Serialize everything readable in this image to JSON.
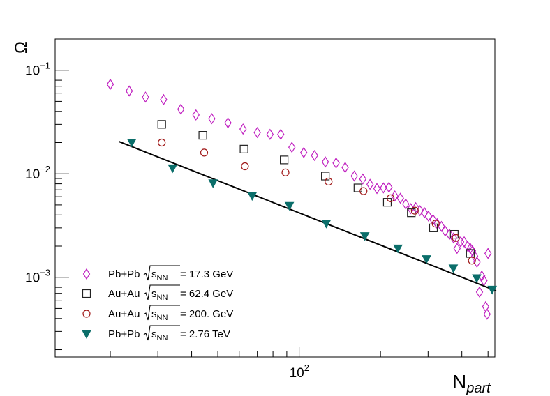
{
  "chart_data": {
    "type": "scatter",
    "title": "",
    "xlabel": {
      "main": "N",
      "sub": "part"
    },
    "ylabel": "Ω",
    "xscale": "log",
    "yscale": "log",
    "xlim": [
      12.5,
      530
    ],
    "ylim": [
      0.00017,
      0.2
    ],
    "x_ticks": [
      {
        "base": "10",
        "exp": "2",
        "value": 100
      }
    ],
    "y_ticks": [
      {
        "base": "10",
        "exp": "−3",
        "value": 0.001
      },
      {
        "base": "10",
        "exp": "−2",
        "value": 0.01
      },
      {
        "base": "10",
        "exp": "−1",
        "value": 0.1
      }
    ],
    "legend_position": "bottom-left",
    "series": [
      {
        "name": "Pb+Pb",
        "energy": "= 17.3 GeV",
        "marker": "diamond-open",
        "color": "#c020c0",
        "points": [
          [
            20.0,
            0.073
          ],
          [
            23.5,
            0.063
          ],
          [
            27.0,
            0.055
          ],
          [
            31.5,
            0.052
          ],
          [
            36.5,
            0.042
          ],
          [
            41.5,
            0.037
          ],
          [
            47.5,
            0.034
          ],
          [
            54.5,
            0.031
          ],
          [
            62.0,
            0.027
          ],
          [
            70.0,
            0.025
          ],
          [
            78.0,
            0.024
          ],
          [
            85.5,
            0.024
          ],
          [
            94.0,
            0.018
          ],
          [
            104.0,
            0.016
          ],
          [
            114.0,
            0.015
          ],
          [
            125.0,
            0.013
          ],
          [
            137.0,
            0.0127
          ],
          [
            148.0,
            0.0115
          ],
          [
            160.0,
            0.0095
          ],
          [
            172.0,
            0.0089
          ],
          [
            183.0,
            0.0079
          ],
          [
            194.0,
            0.0072
          ],
          [
            205.0,
            0.0073
          ],
          [
            215.0,
            0.0074
          ],
          [
            226.0,
            0.0061
          ],
          [
            237.0,
            0.0058
          ],
          [
            248.0,
            0.0051
          ],
          [
            259.0,
            0.0046
          ],
          [
            270.0,
            0.0047
          ],
          [
            280.0,
            0.0044
          ],
          [
            291.0,
            0.0042
          ],
          [
            301.0,
            0.0039
          ],
          [
            313.0,
            0.0036
          ],
          [
            324.0,
            0.0033
          ],
          [
            336.0,
            0.0031
          ],
          [
            347.0,
            0.0028
          ],
          [
            360.0,
            0.0026
          ],
          [
            373.0,
            0.0024
          ],
          [
            384.0,
            0.0019
          ],
          [
            396.0,
            0.0022
          ],
          [
            408.0,
            0.0022
          ],
          [
            420.0,
            0.002
          ],
          [
            430.0,
            0.0019
          ],
          [
            438.0,
            0.0018
          ],
          [
            446.0,
            0.0016
          ],
          [
            455.0,
            0.0014
          ],
          [
            465.0,
            0.00072
          ],
          [
            474.0,
            0.00103
          ],
          [
            483.0,
            0.00093
          ],
          [
            490.0,
            0.00052
          ],
          [
            496.0,
            0.00044
          ],
          [
            500.0,
            0.0017
          ]
        ]
      },
      {
        "name": "Au+Au",
        "energy": "= 62.4 GeV",
        "marker": "square-open",
        "color": "#222222",
        "points": [
          [
            31.0,
            0.03
          ],
          [
            44.0,
            0.0235
          ],
          [
            62.5,
            0.0173
          ],
          [
            88.0,
            0.0136
          ],
          [
            125.0,
            0.0095
          ],
          [
            165.0,
            0.0073
          ],
          [
            212.0,
            0.0053
          ],
          [
            260.0,
            0.0042
          ],
          [
            314.0,
            0.003
          ],
          [
            375.0,
            0.0026
          ],
          [
            430.0,
            0.0017
          ]
        ]
      },
      {
        "name": "Au+Au",
        "energy": "= 200. GeV",
        "marker": "circle-open",
        "color": "#a01818",
        "points": [
          [
            31.0,
            0.02
          ],
          [
            44.5,
            0.016
          ],
          [
            63.0,
            0.0118
          ],
          [
            89.0,
            0.0103
          ],
          [
            128.5,
            0.0084
          ],
          [
            173.0,
            0.0068
          ],
          [
            218.0,
            0.0058
          ],
          [
            268.0,
            0.0044
          ],
          [
            320.0,
            0.0033
          ],
          [
            380.0,
            0.0024
          ],
          [
            436.0,
            0.00145
          ]
        ]
      },
      {
        "name": "Pb+Pb",
        "energy": "= 2.76 TeV",
        "marker": "triangle-down-filled",
        "color": "#0b6e6a",
        "points": [
          [
            24.0,
            0.02
          ],
          [
            34.0,
            0.0113
          ],
          [
            48.0,
            0.0081
          ],
          [
            67.0,
            0.0061
          ],
          [
            92.0,
            0.0049
          ],
          [
            126.0,
            0.0033
          ],
          [
            175.0,
            0.0025
          ],
          [
            232.0,
            0.0019
          ],
          [
            296.0,
            0.0015
          ],
          [
            372.0,
            0.00122
          ],
          [
            454.0,
            0.00098
          ],
          [
            518.0,
            0.00076
          ]
        ]
      }
    ],
    "fit_line": {
      "color": "#000000",
      "from": [
        21.5,
        0.0205
      ],
      "to": [
        536.0,
        0.00074
      ]
    }
  }
}
